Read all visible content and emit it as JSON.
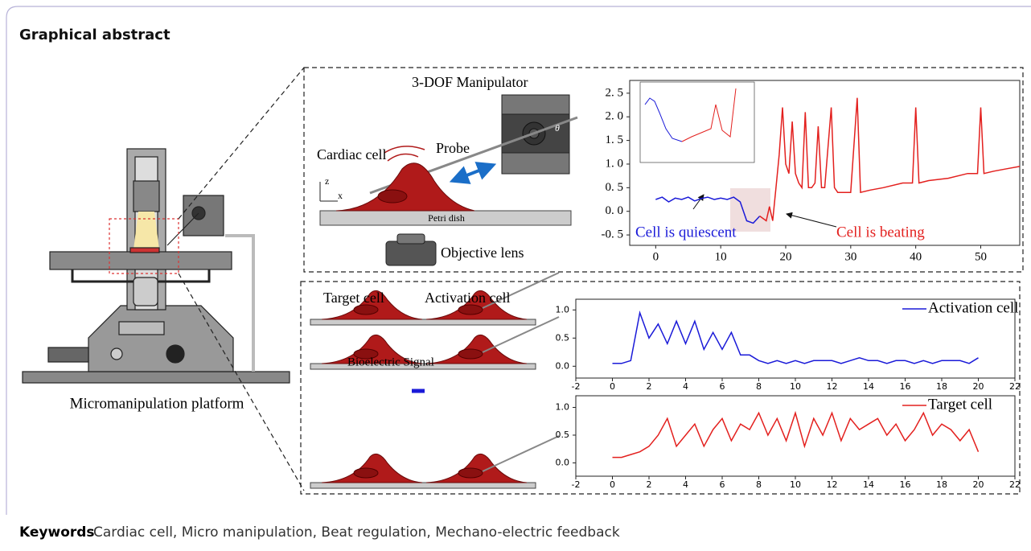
{
  "header": {
    "title": "Graphical abstract"
  },
  "platform": {
    "label": "Micromanipulation platform"
  },
  "top_panel": {
    "labels": {
      "manipulator": "3-DOF Manipulator",
      "cell": "Cardiac cell",
      "probe": "Probe",
      "dish": "Petri dish",
      "lens": "Objective lens",
      "axis_z": "z",
      "axis_x": "x",
      "angle": "θ"
    },
    "chart": {
      "type": "line",
      "xlim": [
        -4,
        56
      ],
      "xticks": [
        0,
        10,
        20,
        30,
        40,
        50
      ],
      "ylim": [
        -0.72,
        2.77
      ],
      "yticks": [
        {
          "value": -0.5,
          "label": "-0. 5"
        },
        {
          "value": 0,
          "label": "0. 0"
        },
        {
          "value": 0.5,
          "label": "0. 5"
        },
        {
          "value": 1,
          "label": "1. 0"
        },
        {
          "value": 1.5,
          "label": "1. 5"
        },
        {
          "value": 2,
          "label": "2. 0"
        },
        {
          "value": 2.5,
          "label": "2. 5"
        }
      ],
      "annotations": [
        "Cell is quiescent",
        "Cell is beating"
      ],
      "series": [
        {
          "color": "#1a1ad8",
          "x": [
            0,
            1,
            2,
            3,
            4,
            5,
            6,
            7,
            8,
            9,
            10,
            11,
            12,
            13,
            14,
            15,
            16
          ],
          "values": [
            0.25,
            0.3,
            0.2,
            0.28,
            0.25,
            0.3,
            0.22,
            0.27,
            0.3,
            0.25,
            0.28,
            0.25,
            0.3,
            0.2,
            -0.2,
            -0.25,
            -0.1
          ]
        },
        {
          "color": "#e3201e",
          "x": [
            16,
            17,
            17.5,
            18,
            18.5,
            19,
            19.5,
            20,
            20.5,
            21,
            21.5,
            22,
            22.5,
            23,
            23.5,
            24,
            24.5,
            25,
            25.5,
            26,
            27,
            27.5,
            28,
            30,
            31,
            31.5,
            33,
            35,
            38,
            39.5,
            40,
            40.5,
            42,
            45,
            48,
            49.5,
            50,
            50.5,
            52,
            54,
            56
          ],
          "values": [
            -0.1,
            -0.2,
            0.1,
            -0.2,
            0.5,
            1.2,
            2.2,
            1.0,
            0.8,
            1.9,
            0.8,
            0.6,
            0.5,
            2.1,
            0.5,
            0.5,
            0.6,
            1.8,
            0.5,
            0.5,
            2.2,
            0.5,
            0.4,
            0.4,
            2.4,
            0.4,
            0.45,
            0.5,
            0.6,
            0.6,
            2.2,
            0.6,
            0.65,
            0.7,
            0.8,
            0.8,
            2.2,
            0.8,
            0.85,
            0.9,
            0.95
          ]
        }
      ]
    }
  },
  "bottom_panel": {
    "labels": {
      "target": "Target cell",
      "activation": "Activation cell",
      "signal": "Bioelectric Signal"
    },
    "charts": [
      {
        "type": "line",
        "xlim": [
          -2,
          22
        ],
        "xticks": [
          -2,
          0,
          2,
          4,
          6,
          8,
          10,
          12,
          14,
          16,
          18,
          20,
          22
        ],
        "ylim": [
          -0.21,
          1.19
        ],
        "yticks": [
          {
            "value": 0,
            "label": "0.0"
          },
          {
            "value": 0.5,
            "label": "0.5"
          },
          {
            "value": 1,
            "label": "1.0"
          }
        ],
        "x": [
          0,
          0.5,
          1,
          1.5,
          2,
          2.5,
          3,
          3.5,
          4,
          4.5,
          5,
          5.5,
          6,
          6.5,
          7,
          7.5,
          8,
          8.5,
          9,
          9.5,
          10,
          10.5,
          11,
          11.5,
          12,
          12.5,
          13,
          13.5,
          14,
          14.5,
          15,
          15.5,
          16,
          16.5,
          17,
          17.5,
          18,
          18.5,
          19,
          19.5,
          20
        ],
        "series": [
          {
            "name": "Activation cell",
            "color": "#1a1ad8",
            "values": [
              0.05,
              0.05,
              0.1,
              0.95,
              0.5,
              0.75,
              0.4,
              0.8,
              0.4,
              0.8,
              0.3,
              0.6,
              0.3,
              0.6,
              0.2,
              0.2,
              0.1,
              0.05,
              0.1,
              0.05,
              0.1,
              0.05,
              0.1,
              0.1,
              0.1,
              0.05,
              0.1,
              0.15,
              0.1,
              0.1,
              0.05,
              0.1,
              0.1,
              0.05,
              0.1,
              0.05,
              0.1,
              0.1,
              0.1,
              0.05,
              0.15
            ]
          }
        ]
      },
      {
        "type": "line",
        "xlim": [
          -2,
          22
        ],
        "xticks": [
          -2,
          0,
          2,
          4,
          6,
          8,
          10,
          12,
          14,
          16,
          18,
          20,
          22
        ],
        "ylim": [
          -0.24,
          1.21
        ],
        "yticks": [
          {
            "value": 0,
            "label": "0.0"
          },
          {
            "value": 0.5,
            "label": "0.5"
          },
          {
            "value": 1,
            "label": "1.0"
          }
        ],
        "x": [
          0,
          0.5,
          1,
          1.5,
          2,
          2.5,
          3,
          3.5,
          4,
          4.5,
          5,
          5.5,
          6,
          6.5,
          7,
          7.5,
          8,
          8.5,
          9,
          9.5,
          10,
          10.5,
          11,
          11.5,
          12,
          12.5,
          13,
          13.5,
          14,
          14.5,
          15,
          15.5,
          16,
          16.5,
          17,
          17.5,
          18,
          18.5,
          19,
          19.5,
          20
        ],
        "series": [
          {
            "name": "Target cell",
            "color": "#e3201e",
            "values": [
              0.1,
              0.1,
              0.15,
              0.2,
              0.3,
              0.5,
              0.8,
              0.3,
              0.5,
              0.7,
              0.3,
              0.6,
              0.8,
              0.4,
              0.7,
              0.6,
              0.9,
              0.5,
              0.8,
              0.4,
              0.9,
              0.3,
              0.8,
              0.5,
              0.9,
              0.4,
              0.8,
              0.6,
              0.7,
              0.8,
              0.5,
              0.7,
              0.4,
              0.6,
              0.9,
              0.5,
              0.7,
              0.6,
              0.4,
              0.6,
              0.2
            ]
          }
        ]
      }
    ]
  },
  "keywords": {
    "label": "Keywords",
    "text": "Cardiac cell, Micro manipulation, Beat regulation, Mechano-electric feedback"
  }
}
